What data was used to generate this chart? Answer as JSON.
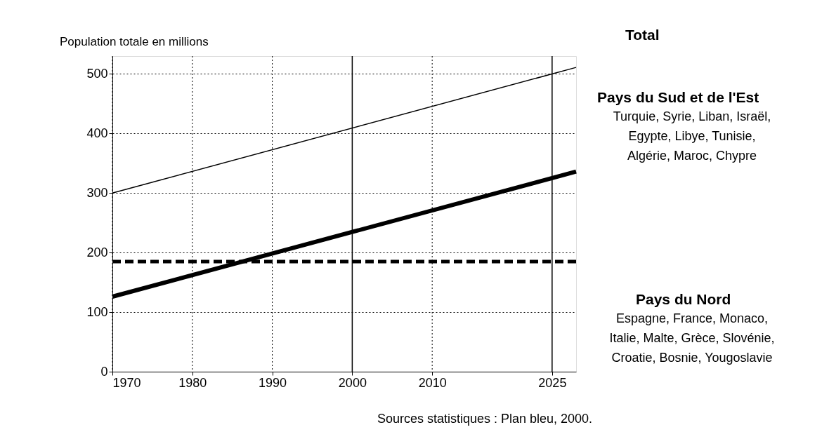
{
  "chart_data": {
    "type": "line",
    "ylabel": "Population totale en millions",
    "xlim": [
      1970,
      2028
    ],
    "xticks": [
      1970,
      1980,
      1990,
      2000,
      2010,
      2025
    ],
    "ylim": [
      0,
      530
    ],
    "yticks": [
      0,
      100,
      200,
      300,
      400,
      500
    ],
    "x": [
      1970,
      2028
    ],
    "grid": true,
    "legend": false,
    "marker": "none",
    "series": [
      {
        "name": "Total",
        "color": "#000000",
        "values": [
          300,
          511
        ],
        "line_style": "solid"
      },
      {
        "name": "Pays du Sud et de l'Est",
        "color": "#000000",
        "values": [
          126,
          336
        ],
        "line_style": "solid"
      },
      {
        "name": "Pays du Nord",
        "color": "#000000",
        "values": [
          185,
          185
        ],
        "line_style": "dashed"
      }
    ],
    "ref_lines": [
      {
        "axis": "x",
        "value": 2000,
        "line_style": "solid",
        "color": "#000000"
      },
      {
        "axis": "x",
        "value": 2025,
        "line_style": "solid",
        "color": "#000000"
      }
    ],
    "annotations": [
      "Turquie, Syrie, Liban, Israël,\nEgypte, Libye, Tunisie,\nAlgérie, Maroc, Chypre",
      "Espagne, France, Monaco,\nItalie, Malte, Grèce, Slovénie,\nCroatie, Bosnie, Yougoslavie",
      "Sources statistiques : Plan bleu, 2000."
    ]
  }
}
